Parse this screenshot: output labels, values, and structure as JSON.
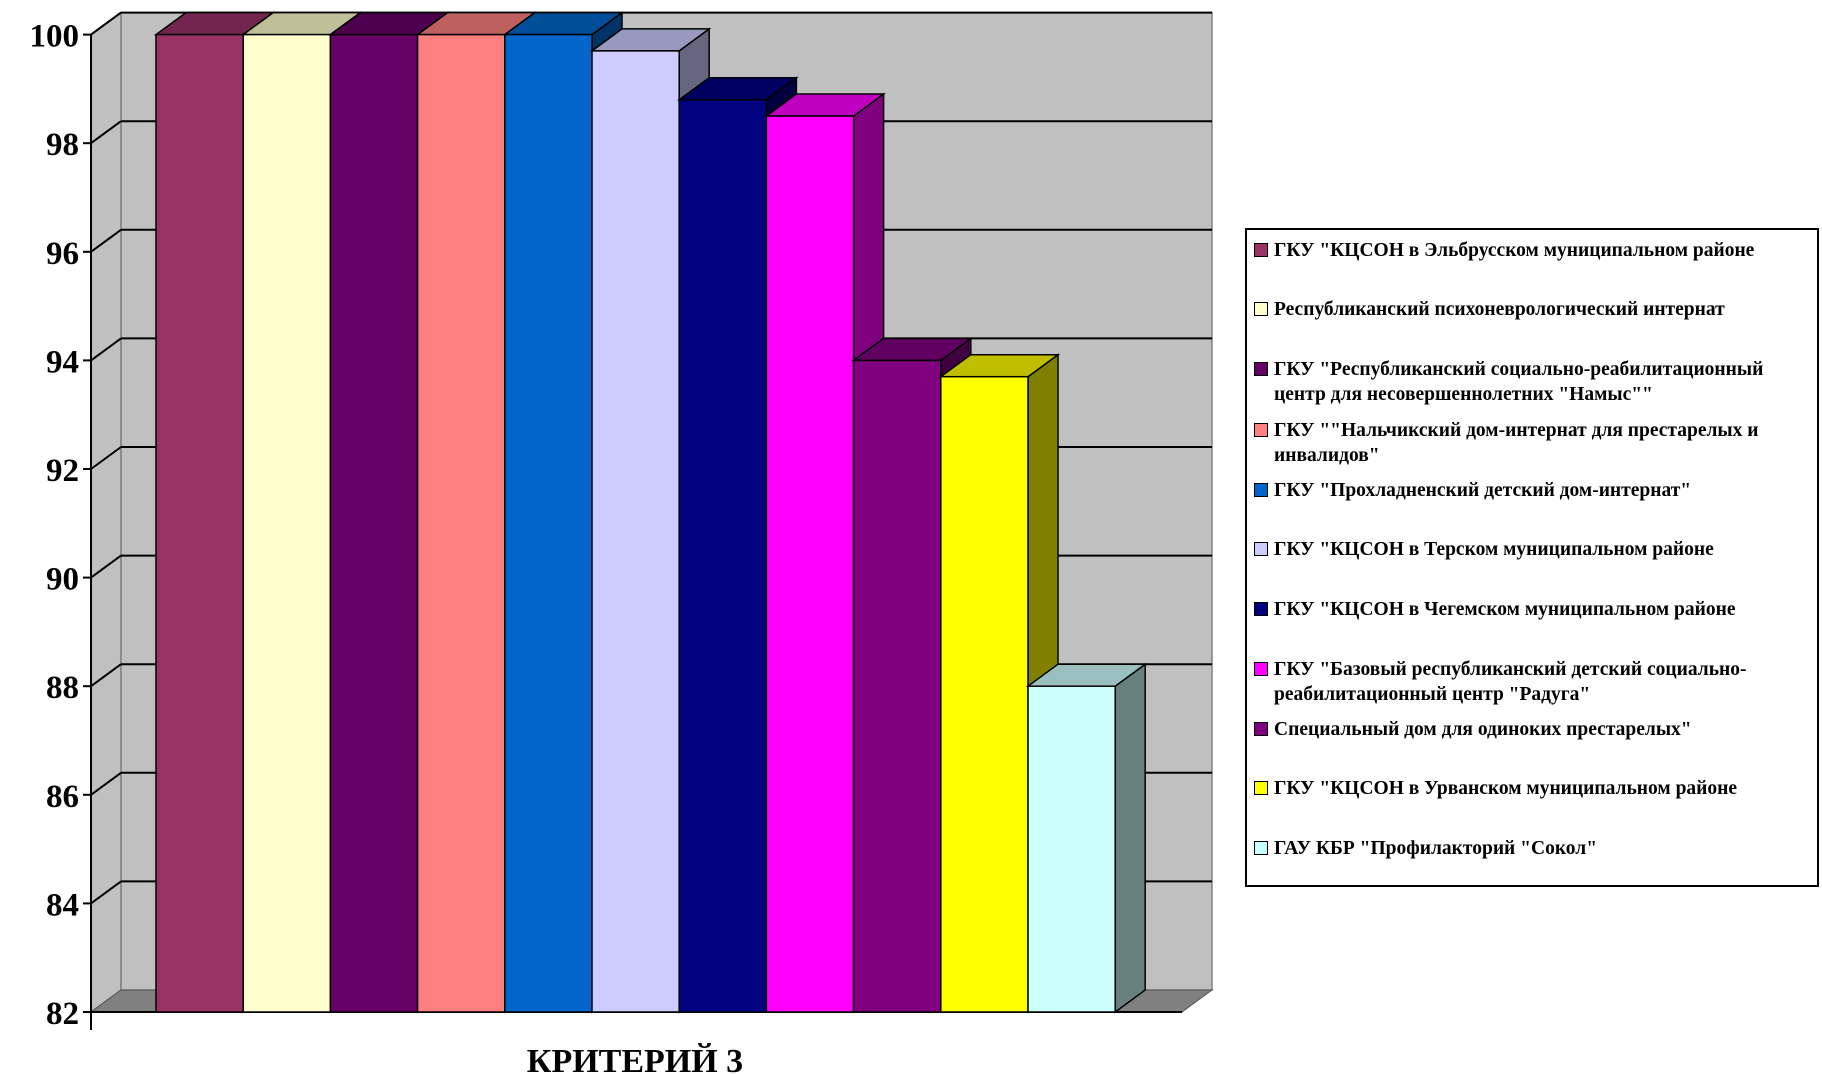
{
  "chart_data": {
    "type": "bar",
    "title": "",
    "xlabel": "КРИТЕРИЙ 3",
    "ylabel": "",
    "ylim": [
      82,
      100
    ],
    "yticks": [
      82,
      84,
      86,
      88,
      90,
      92,
      94,
      96,
      98,
      100
    ],
    "categories": [
      "КРИТЕРИЙ 3"
    ],
    "grid": true,
    "legend_position": "right",
    "style": "3d-clustered-column",
    "series": [
      {
        "name": "ГКУ \"КЦСОН в Эльбрусском муниципальном районе",
        "values": [
          100
        ],
        "color": "#993366"
      },
      {
        "name": "Республиканский психоневрологический интернат",
        "values": [
          100
        ],
        "color": "#FFFFCC"
      },
      {
        "name": "ГКУ \"Республиканский социально-реабилитационный центр для несовершеннолетних \"Намыс\"\"",
        "values": [
          100
        ],
        "color": "#660066"
      },
      {
        "name": "ГКУ \"\"Нальчикский дом-интернат для престарелых и инвалидов\"",
        "values": [
          100
        ],
        "color": "#FF8080"
      },
      {
        "name": "ГКУ \"Прохладненский детский дом-интернат\"",
        "values": [
          100
        ],
        "color": "#0066CC"
      },
      {
        "name": "ГКУ \"КЦСОН в Терском муниципальном районе",
        "values": [
          99.7
        ],
        "color": "#CCCCFF"
      },
      {
        "name": "ГКУ \"КЦСОН в Чегемском муниципальном районе",
        "values": [
          98.8
        ],
        "color": "#000080"
      },
      {
        "name": "ГКУ \"Базовый республиканский детский социально-реабилитационный центр \"Радуга\"",
        "values": [
          98.5
        ],
        "color": "#FF00FF"
      },
      {
        "name": "Специальный дом для одиноких престарелых\"",
        "values": [
          94
        ],
        "color": "#800080"
      },
      {
        "name": "ГКУ \"КЦСОН в Урванском муниципальном районе",
        "values": [
          93.7
        ],
        "color": "#FFFF00"
      },
      {
        "name": "ГАУ КБР \"Профилакторий \"Сокол\"",
        "values": [
          88
        ],
        "color": "#CCFFFF"
      }
    ]
  }
}
